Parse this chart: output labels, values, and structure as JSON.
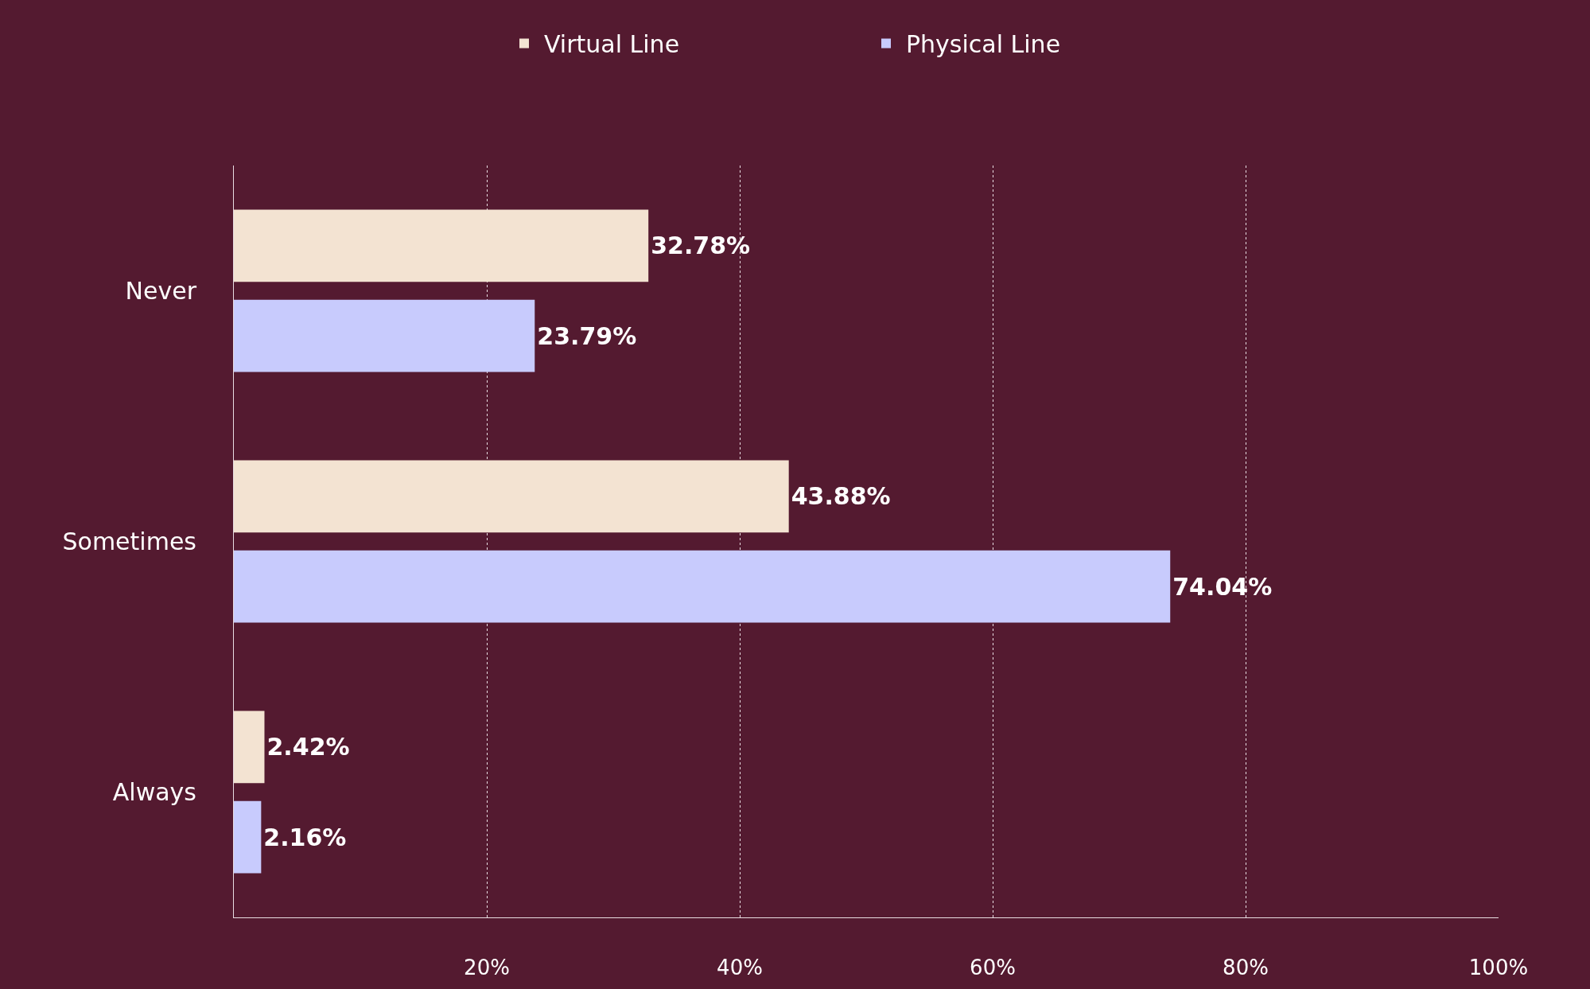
{
  "chart_data": {
    "type": "bar",
    "orientation": "horizontal",
    "categories": [
      "Never",
      "Sometimes",
      "Always"
    ],
    "series": [
      {
        "name": "Virtual Line",
        "color": "#f3e3d2",
        "values": [
          32.78,
          43.88,
          2.42
        ],
        "value_labels": [
          "32.78%",
          "43.88%",
          "2.42%"
        ]
      },
      {
        "name": "Physical Line",
        "color": "#c8cbfd",
        "values": [
          23.79,
          74.04,
          2.16
        ],
        "value_labels": [
          "23.79%",
          "74.04%",
          "2.16%"
        ]
      }
    ],
    "xlim": [
      0,
      100
    ],
    "xticks": [
      {
        "value": 20,
        "label": "20%"
      },
      {
        "value": 40,
        "label": "40%"
      },
      {
        "value": 60,
        "label": "60%"
      },
      {
        "value": 80,
        "label": "80%"
      },
      {
        "value": 100,
        "label": "100%"
      }
    ],
    "grid": "x",
    "legend": "top"
  }
}
